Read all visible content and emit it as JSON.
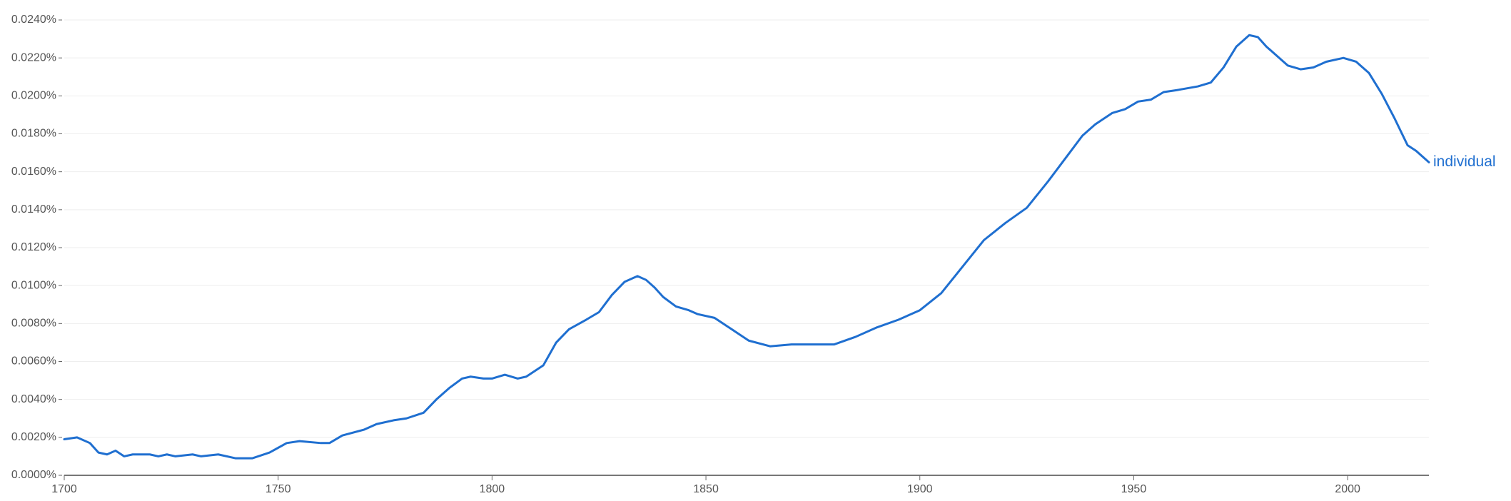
{
  "chart_data": {
    "type": "line",
    "x": [
      1700,
      1703,
      1706,
      1708,
      1710,
      1712,
      1714,
      1716,
      1720,
      1722,
      1724,
      1726,
      1730,
      1732,
      1736,
      1740,
      1744,
      1748,
      1752,
      1755,
      1760,
      1762,
      1765,
      1770,
      1773,
      1777,
      1780,
      1784,
      1787,
      1790,
      1793,
      1795,
      1798,
      1800,
      1803,
      1806,
      1808,
      1812,
      1815,
      1818,
      1822,
      1825,
      1828,
      1831,
      1834,
      1836,
      1838,
      1840,
      1843,
      1846,
      1848,
      1852,
      1856,
      1860,
      1865,
      1870,
      1875,
      1880,
      1885,
      1890,
      1895,
      1900,
      1905,
      1910,
      1915,
      1920,
      1925,
      1930,
      1935,
      1938,
      1941,
      1945,
      1948,
      1951,
      1954,
      1957,
      1960,
      1965,
      1968,
      1971,
      1974,
      1977,
      1979,
      1981,
      1984,
      1986,
      1989,
      1992,
      1995,
      1999,
      2002,
      2005,
      2008,
      2011,
      2014,
      2016,
      2019
    ],
    "series": [
      {
        "name": "individual",
        "color": "#1f6fd0",
        "values": [
          0.0019,
          0.002,
          0.0017,
          0.0012,
          0.0011,
          0.0013,
          0.001,
          0.0011,
          0.0011,
          0.001,
          0.0011,
          0.001,
          0.0011,
          0.001,
          0.0011,
          0.0009,
          0.0009,
          0.0012,
          0.0017,
          0.0018,
          0.0017,
          0.0017,
          0.0021,
          0.0024,
          0.0027,
          0.0029,
          0.003,
          0.0033,
          0.004,
          0.0046,
          0.0051,
          0.0052,
          0.0051,
          0.0051,
          0.0053,
          0.0051,
          0.0052,
          0.0058,
          0.007,
          0.0077,
          0.0082,
          0.0086,
          0.0095,
          0.0102,
          0.0105,
          0.0103,
          0.0099,
          0.0094,
          0.0089,
          0.0087,
          0.0085,
          0.0083,
          0.0077,
          0.0071,
          0.0068,
          0.0069,
          0.0069,
          0.0069,
          0.0073,
          0.0078,
          0.0082,
          0.0087,
          0.0096,
          0.011,
          0.0124,
          0.0133,
          0.0141,
          0.0155,
          0.017,
          0.0179,
          0.0185,
          0.0191,
          0.0193,
          0.0197,
          0.0198,
          0.0202,
          0.0203,
          0.0205,
          0.0207,
          0.0215,
          0.0226,
          0.0232,
          0.0231,
          0.0226,
          0.022,
          0.0216,
          0.0214,
          0.0215,
          0.0218,
          0.022,
          0.0218,
          0.0212,
          0.0201,
          0.0188,
          0.0174,
          0.0171,
          0.0165
        ]
      }
    ],
    "xlim": [
      1700,
      2019
    ],
    "xticks": [
      1700,
      1750,
      1800,
      1850,
      1900,
      1950,
      2000
    ],
    "ylim": [
      0,
      0.024
    ],
    "yticks": [
      {
        "value": 0,
        "label": "0.0000%"
      },
      {
        "value": 0.002,
        "label": "0.0020%"
      },
      {
        "value": 0.004,
        "label": "0.0040%"
      },
      {
        "value": 0.006,
        "label": "0.0060%"
      },
      {
        "value": 0.008,
        "label": "0.0080%"
      },
      {
        "value": 0.01,
        "label": "0.0100%"
      },
      {
        "value": 0.012,
        "label": "0.0120%"
      },
      {
        "value": 0.014,
        "label": "0.0140%"
      },
      {
        "value": 0.016,
        "label": "0.0160%"
      },
      {
        "value": 0.018,
        "label": "0.0180%"
      },
      {
        "value": 0.02,
        "label": "0.0200%"
      },
      {
        "value": 0.022,
        "label": "0.0220%"
      },
      {
        "value": 0.024,
        "label": "0.0240%"
      }
    ],
    "grid": true
  }
}
